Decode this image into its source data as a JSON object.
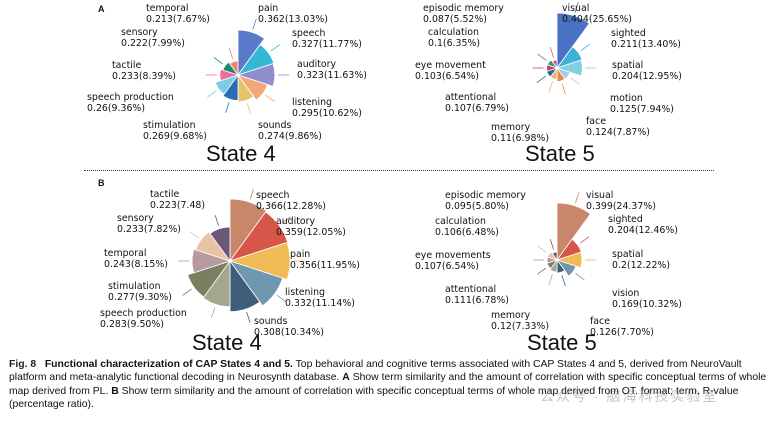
{
  "panel_a_letter": "A",
  "panel_b_letter": "B",
  "chart_data": [
    {
      "type": "pie",
      "panel": "A",
      "title": "State 4",
      "slices": [
        {
          "term": "pain",
          "r": 0.362,
          "pct": 13.03,
          "text": "0.362(13.03%)",
          "color": "#5b7ac9"
        },
        {
          "term": "speech",
          "r": 0.327,
          "pct": 11.77,
          "text": "0.327(11.77%)",
          "color": "#33b8d6"
        },
        {
          "term": "auditory",
          "r": 0.323,
          "pct": 11.63,
          "text": "0.323(11.63%)",
          "color": "#8f8fd0"
        },
        {
          "term": "listening",
          "r": 0.295,
          "pct": 10.62,
          "text": "0.295(10.62%)",
          "color": "#f1a878"
        },
        {
          "term": "sounds",
          "r": 0.274,
          "pct": 9.86,
          "text": "0.274(9.86%)",
          "color": "#e2c46a"
        },
        {
          "term": "stimulation",
          "r": 0.269,
          "pct": 9.68,
          "text": "0.269(9.68%)",
          "color": "#2a6db5"
        },
        {
          "term": "speech production",
          "r": 0.26,
          "pct": 9.36,
          "text": "0.26(9.36%)",
          "color": "#7fcbe6"
        },
        {
          "term": "tactile",
          "r": 0.233,
          "pct": 8.39,
          "text": "0.233(8.39%)",
          "color": "#ee6c9c"
        },
        {
          "term": "sensory",
          "r": 0.222,
          "pct": 7.99,
          "text": "0.222(7.99%)",
          "color": "#1e8a6b"
        },
        {
          "term": "temporal",
          "r": 0.213,
          "pct": 7.67,
          "text": "0.213(7.67%)",
          "color": "#f3816e"
        }
      ]
    },
    {
      "type": "pie",
      "panel": "A",
      "title": "State 5",
      "slices": [
        {
          "term": "visual",
          "r": 0.404,
          "pct": 25.65,
          "text": "0.404(25.65%)",
          "color": "#4a72c4"
        },
        {
          "term": "sighted",
          "r": 0.211,
          "pct": 13.4,
          "text": "0.211(13.40%)",
          "color": "#3db2d5"
        },
        {
          "term": "spatial",
          "r": 0.204,
          "pct": 12.95,
          "text": "0.204(12.95%)",
          "color": "#7fd0e3"
        },
        {
          "term": "motion",
          "r": 0.125,
          "pct": 7.94,
          "text": "0.125(7.94%)",
          "color": "#a6c8e3"
        },
        {
          "term": "face",
          "r": 0.124,
          "pct": 7.87,
          "text": "0.124(7.87%)",
          "color": "#e28a4d"
        },
        {
          "term": "memory",
          "r": 0.11,
          "pct": 6.98,
          "text": "0.11(6.98%)",
          "color": "#f0b070"
        },
        {
          "term": "attentional",
          "r": 0.107,
          "pct": 6.79,
          "text": "0.107(6.79%)",
          "color": "#1d6e87"
        },
        {
          "term": "eye movement",
          "r": 0.103,
          "pct": 6.54,
          "text": "0.103(6.54%)",
          "color": "#c63e62"
        },
        {
          "term": "calculation",
          "r": 0.1,
          "pct": 6.35,
          "text": "0.1(6.35%)",
          "color": "#2f9a6e"
        },
        {
          "term": "episodic memory",
          "r": 0.087,
          "pct": 5.52,
          "text": "0.087(5.52%)",
          "color": "#e05577"
        }
      ]
    },
    {
      "type": "pie",
      "panel": "B",
      "title": "State 4",
      "slices": [
        {
          "term": "speech",
          "r": 0.366,
          "pct": 12.28,
          "text": "0.366(12.28%)",
          "color": "#c8876a"
        },
        {
          "term": "auditory",
          "r": 0.359,
          "pct": 12.05,
          "text": "0.359(12.05%)",
          "color": "#d7564a"
        },
        {
          "term": "pain",
          "r": 0.356,
          "pct": 11.95,
          "text": "0.356(11.95%)",
          "color": "#efbb55"
        },
        {
          "term": "listening",
          "r": 0.332,
          "pct": 11.14,
          "text": "0.332(11.14%)",
          "color": "#6f97b0"
        },
        {
          "term": "sounds",
          "r": 0.308,
          "pct": 10.34,
          "text": "0.308(10.34%)",
          "color": "#3f5c78"
        },
        {
          "term": "speech production",
          "r": 0.283,
          "pct": 9.5,
          "text": "0.283(9.50%)",
          "color": "#a4a88a"
        },
        {
          "term": "stimulation",
          "r": 0.277,
          "pct": 9.3,
          "text": "0.277(9.30%)",
          "color": "#7b7e5f"
        },
        {
          "term": "temporal",
          "r": 0.243,
          "pct": 8.15,
          "text": "0.243(8.15%)",
          "color": "#b69aa0"
        },
        {
          "term": "sensory",
          "r": 0.233,
          "pct": 7.82,
          "text": "0.233(7.82%)",
          "color": "#e8c2a2"
        },
        {
          "term": "tactile",
          "r": 0.223,
          "pct": 7.48,
          "text": "0.223(7.48)",
          "color": "#6a5878"
        }
      ]
    },
    {
      "type": "pie",
      "panel": "B",
      "title": "State 5",
      "slices": [
        {
          "term": "visual",
          "r": 0.399,
          "pct": 24.37,
          "text": "0.399(24.37%)",
          "color": "#c8876a"
        },
        {
          "term": "sighted",
          "r": 0.204,
          "pct": 12.46,
          "text": "0.204(12.46%)",
          "color": "#d7564a"
        },
        {
          "term": "spatial",
          "r": 0.2,
          "pct": 12.22,
          "text": "0.2(12.22%)",
          "color": "#efbb55"
        },
        {
          "term": "vision",
          "r": 0.169,
          "pct": 10.32,
          "text": "0.169(10.32%)",
          "color": "#6f97b0"
        },
        {
          "term": "face",
          "r": 0.126,
          "pct": 7.7,
          "text": "0.126(7.70%)",
          "color": "#3f5c78"
        },
        {
          "term": "memory",
          "r": 0.12,
          "pct": 7.33,
          "text": "0.12(7.33%)",
          "color": "#a4a88a"
        },
        {
          "term": "attentional",
          "r": 0.111,
          "pct": 6.78,
          "text": "0.111(6.78%)",
          "color": "#7b7e5f"
        },
        {
          "term": "eye movements",
          "r": 0.107,
          "pct": 6.54,
          "text": "0.107(6.54%)",
          "color": "#b69aa0"
        },
        {
          "term": "calculation",
          "r": 0.106,
          "pct": 6.48,
          "text": "0.106(6.48%)",
          "color": "#e8c2a2"
        },
        {
          "term": "episodic memory",
          "r": 0.095,
          "pct": 5.8,
          "text": "0.095(5.80%)",
          "color": "#6a5878"
        }
      ]
    }
  ],
  "caption": {
    "fig_number": "Fig. 8",
    "title": "Functional characterization of CAP States 4 and 5.",
    "text1": "Top behavioral and cognitive terms associated with CAP States 4 and 5, derived from NeuroVault platform and meta-analytic functional decoding in Neurosynth database.",
    "bold_a": "A",
    "text2": "Show term similarity and the amount of correlation with specific conceptual terms of whole map derived from PL.",
    "bold_b": "B",
    "text3": "Show term similarity and the amount of correlation with specific conceptual terms of whole map derived from OT. format; term, R-value (percentage ratio)."
  },
  "watermark": "公众号 · 脑海科技实验室"
}
